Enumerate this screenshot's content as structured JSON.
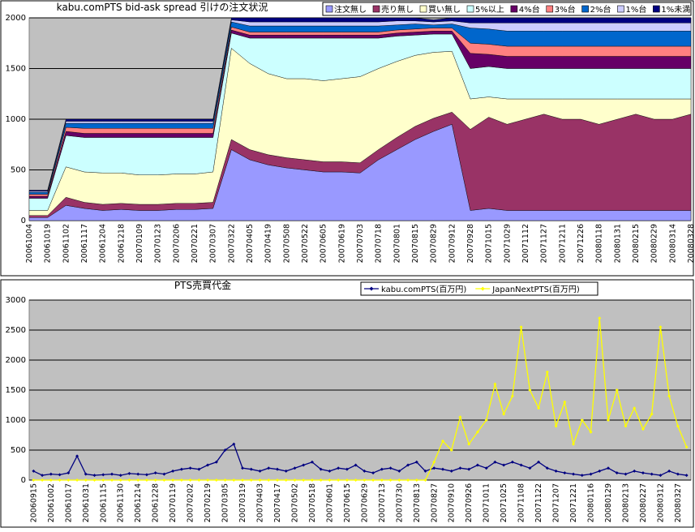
{
  "chart_data": [
    {
      "type": "area",
      "stacked": true,
      "title": "kabu.comPTS bid-ask spread 引けの注文状況",
      "categories": [
        "20061004",
        "20061019",
        "20061102",
        "20061117",
        "20061204",
        "20061218",
        "20070109",
        "20070123",
        "20070206",
        "20070221",
        "20070307",
        "20070322",
        "20070405",
        "20070419",
        "20070508",
        "20070522",
        "20070605",
        "20070619",
        "20070703",
        "20070718",
        "20070801",
        "20070815",
        "20070829",
        "20070912",
        "20070928",
        "20071015",
        "20071029",
        "20071112",
        "20071127",
        "20071211",
        "20071226",
        "20080118",
        "20080131",
        "20080215",
        "20080229",
        "20080314",
        "20080328"
      ],
      "series": [
        {
          "name": "注文無し",
          "color": "#9999ff",
          "values": [
            30,
            30,
            150,
            120,
            100,
            110,
            100,
            100,
            110,
            110,
            120,
            700,
            600,
            550,
            520,
            500,
            480,
            480,
            470,
            600,
            700,
            800,
            880,
            950,
            100,
            120,
            100,
            100,
            100,
            100,
            100,
            100,
            100,
            100,
            100,
            100,
            100
          ]
        },
        {
          "name": "売り無し",
          "color": "#993366",
          "values": [
            20,
            20,
            80,
            60,
            60,
            60,
            60,
            60,
            60,
            60,
            60,
            100,
            100,
            100,
            100,
            100,
            100,
            100,
            100,
            100,
            120,
            130,
            130,
            120,
            800,
            900,
            850,
            900,
            950,
            900,
            900,
            850,
            900,
            950,
            900,
            900,
            950
          ]
        },
        {
          "name": "買い無し",
          "color": "#ffffcc",
          "values": [
            50,
            50,
            300,
            300,
            310,
            300,
            290,
            290,
            290,
            290,
            300,
            900,
            850,
            800,
            780,
            800,
            800,
            820,
            850,
            800,
            750,
            700,
            650,
            600,
            300,
            200,
            250,
            200,
            150,
            200,
            200,
            250,
            200,
            150,
            200,
            200,
            150
          ]
        },
        {
          "name": "5%以上",
          "color": "#ccffff",
          "values": [
            120,
            120,
            310,
            340,
            350,
            350,
            370,
            370,
            360,
            360,
            340,
            150,
            250,
            350,
            400,
            400,
            420,
            400,
            380,
            300,
            250,
            200,
            180,
            170,
            300,
            300,
            300,
            300,
            300,
            300,
            300,
            300,
            300,
            300,
            300,
            300,
            300
          ]
        },
        {
          "name": "4%台",
          "color": "#660066",
          "values": [
            20,
            20,
            40,
            40,
            40,
            40,
            40,
            40,
            40,
            40,
            40,
            30,
            30,
            30,
            30,
            30,
            30,
            30,
            30,
            30,
            30,
            30,
            30,
            30,
            150,
            120,
            120,
            120,
            120,
            120,
            120,
            120,
            120,
            120,
            120,
            120,
            120
          ]
        },
        {
          "name": "3%台",
          "color": "#ff8080",
          "values": [
            20,
            20,
            40,
            50,
            50,
            50,
            50,
            50,
            50,
            50,
            50,
            30,
            30,
            30,
            30,
            30,
            30,
            30,
            30,
            30,
            30,
            30,
            30,
            30,
            100,
            100,
            100,
            100,
            100,
            100,
            100,
            100,
            100,
            100,
            100,
            100,
            100
          ]
        },
        {
          "name": "2%台",
          "color": "#0066cc",
          "values": [
            20,
            20,
            40,
            50,
            50,
            50,
            50,
            50,
            50,
            50,
            50,
            50,
            60,
            60,
            60,
            60,
            60,
            60,
            60,
            60,
            50,
            50,
            30,
            40,
            150,
            150,
            150,
            150,
            150,
            150,
            150,
            150,
            150,
            150,
            150,
            150,
            150
          ]
        },
        {
          "name": "1%台",
          "color": "#ccccff",
          "values": [
            10,
            10,
            20,
            20,
            20,
            20,
            20,
            20,
            20,
            20,
            20,
            20,
            40,
            40,
            40,
            40,
            40,
            40,
            40,
            40,
            40,
            30,
            30,
            30,
            50,
            60,
            80,
            80,
            80,
            80,
            80,
            80,
            80,
            80,
            80,
            80,
            80
          ]
        },
        {
          "name": "1%未満",
          "color": "#000080",
          "values": [
            10,
            10,
            20,
            20,
            20,
            20,
            20,
            20,
            20,
            20,
            20,
            20,
            40,
            40,
            40,
            40,
            40,
            40,
            40,
            40,
            30,
            30,
            20,
            30,
            50,
            50,
            50,
            50,
            50,
            50,
            50,
            50,
            50,
            50,
            50,
            50,
            50
          ]
        }
      ],
      "ylim": [
        0,
        2000
      ],
      "yticks": [
        0,
        500,
        1000,
        1500,
        2000
      ],
      "grid": true,
      "plot_color": "#c0c0c0",
      "legend": "top-right"
    },
    {
      "type": "line",
      "title": "PTS売買代金",
      "categories": [
        "20060915",
        null,
        "20061002",
        null,
        "20061017",
        null,
        "20061031",
        null,
        "20061115",
        null,
        "20061130",
        null,
        "20061214",
        null,
        "20061228",
        null,
        "20070119",
        null,
        "20070202",
        null,
        "20070219",
        null,
        "20070305",
        null,
        "20070319",
        null,
        "20070403",
        null,
        "20070417",
        null,
        "20070502",
        null,
        "20070518",
        null,
        "20070601",
        null,
        "20070615",
        null,
        "20070629",
        null,
        "20070713",
        null,
        "20070730",
        null,
        "20070813",
        null,
        "20070827",
        null,
        "20070910",
        null,
        "20070926",
        null,
        "20071011",
        null,
        "20071025",
        null,
        "20071108",
        null,
        "20071122",
        null,
        "20071207",
        null,
        "20071221",
        null,
        "20080116",
        null,
        "20080129",
        null,
        "20080213",
        null,
        "20080227",
        null,
        "20080312",
        null,
        "20080327",
        null
      ],
      "series": [
        {
          "name": "kabu.comPTS(百万円)",
          "color": "#000080",
          "values": [
            150,
            80,
            100,
            90,
            120,
            400,
            100,
            80,
            90,
            100,
            80,
            110,
            100,
            90,
            120,
            100,
            150,
            180,
            200,
            180,
            250,
            300,
            500,
            600,
            200,
            180,
            150,
            200,
            180,
            150,
            200,
            250,
            300,
            180,
            150,
            200,
            180,
            250,
            150,
            120,
            180,
            200,
            150,
            250,
            300,
            150,
            200,
            180,
            150,
            200,
            180,
            250,
            200,
            300,
            250,
            300,
            250,
            200,
            300,
            200,
            150,
            120,
            100,
            80,
            100,
            150,
            200,
            120,
            100,
            150,
            120,
            100,
            80,
            150,
            100,
            80
          ]
        },
        {
          "name": "JapanNextPTS(百万円)",
          "color": "#ffff00",
          "values": [
            0,
            0,
            0,
            0,
            0,
            0,
            0,
            0,
            0,
            0,
            0,
            0,
            0,
            0,
            0,
            0,
            0,
            0,
            0,
            0,
            0,
            0,
            0,
            0,
            0,
            0,
            0,
            0,
            0,
            0,
            0,
            0,
            0,
            0,
            0,
            0,
            0,
            0,
            0,
            0,
            0,
            0,
            0,
            0,
            0,
            0,
            300,
            650,
            500,
            1050,
            600,
            800,
            1000,
            1600,
            1100,
            1400,
            2550,
            1500,
            1200,
            1800,
            900,
            1300,
            600,
            1000,
            800,
            2700,
            1000,
            1500,
            900,
            1200,
            850,
            1100,
            2550,
            1400,
            900,
            550
          ]
        }
      ],
      "ylim": [
        0,
        3000
      ],
      "yticks": [
        0,
        500,
        1000,
        1500,
        2000,
        2500,
        3000
      ],
      "grid": true,
      "plot_color": "#c0c0c0",
      "legend": "top-right"
    }
  ]
}
